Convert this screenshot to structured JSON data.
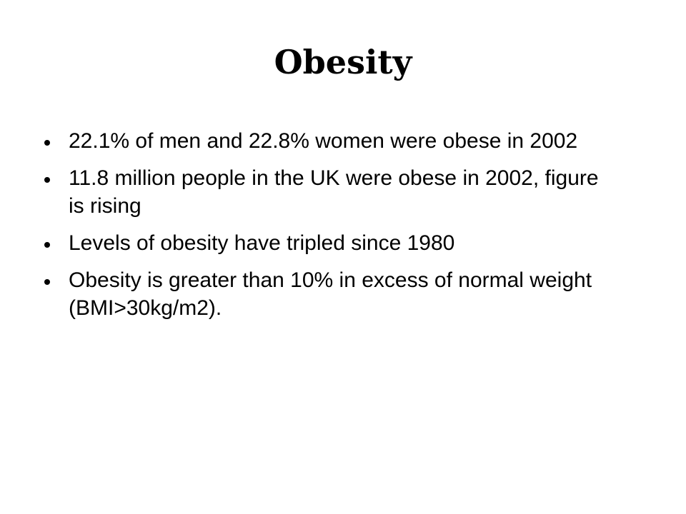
{
  "slide": {
    "title": "Obesity",
    "bullets": [
      "22.1% of men and 22.8% women were obese in 2002",
      "11.8 million people in the UK were obese in 2002, figure is rising",
      "Levels of obesity have tripled since 1980",
      "Obesity is greater than 10% in excess of normal weight (BMI>30kg/m2)."
    ]
  }
}
